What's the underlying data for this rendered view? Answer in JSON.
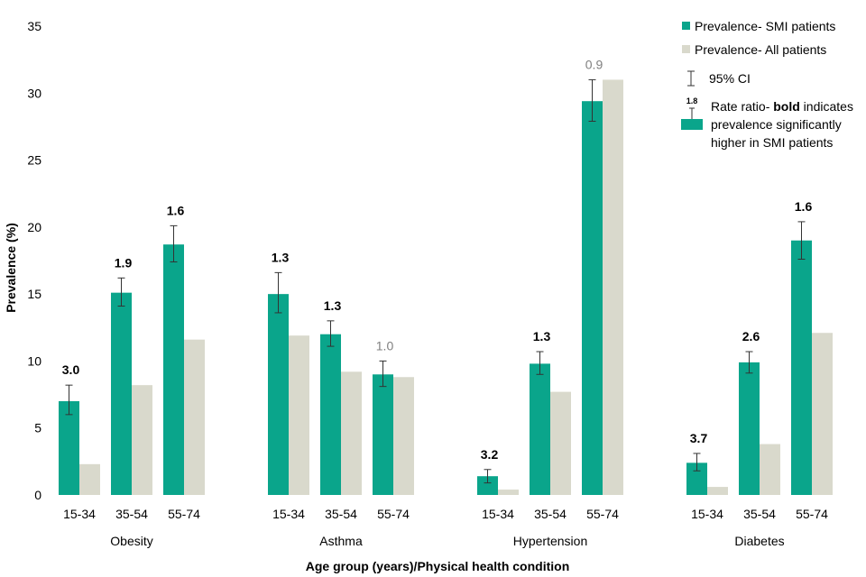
{
  "chart_data": {
    "type": "bar",
    "title": "",
    "ylabel": "Prevalence (%)",
    "xlabel": "Age group (years)/Physical health condition",
    "ylim": [
      0,
      35
    ],
    "yticks": [
      0,
      5,
      10,
      15,
      20,
      25,
      30,
      35
    ],
    "grid": false,
    "legend_position": "top-right",
    "colors": {
      "smi": "#0aa58b",
      "all": "#d9d9cc",
      "error": "#333333",
      "rr_plain": "#808080"
    },
    "groups": [
      {
        "name": "Obesity",
        "categories": [
          "15-34",
          "35-54",
          "55-74"
        ]
      },
      {
        "name": "Asthma",
        "categories": [
          "15-34",
          "35-54",
          "55-74"
        ]
      },
      {
        "name": "Hypertension",
        "categories": [
          "15-34",
          "35-54",
          "55-74"
        ]
      },
      {
        "name": "Diabetes",
        "categories": [
          "15-34",
          "35-54",
          "55-74"
        ]
      }
    ],
    "series": [
      {
        "name": "Prevalence- SMI patients",
        "values": [
          7.0,
          15.1,
          18.7,
          15.0,
          12.0,
          9.0,
          1.4,
          9.8,
          29.4,
          2.4,
          9.9,
          19.0
        ],
        "ci_lower": [
          6.0,
          14.1,
          17.4,
          13.6,
          11.1,
          8.1,
          0.9,
          9.0,
          27.9,
          1.8,
          9.1,
          17.6
        ],
        "ci_upper": [
          8.2,
          16.2,
          20.1,
          16.6,
          13.0,
          10.0,
          1.9,
          10.7,
          31.0,
          3.1,
          10.7,
          20.4
        ]
      },
      {
        "name": "Prevalence- All patients",
        "values": [
          2.3,
          8.2,
          11.6,
          11.9,
          9.2,
          8.8,
          0.4,
          7.7,
          31.0,
          0.6,
          3.8,
          12.1
        ]
      }
    ],
    "rate_ratios": [
      {
        "label": "3.0",
        "bold": true
      },
      {
        "label": "1.9",
        "bold": true
      },
      {
        "label": "1.6",
        "bold": true
      },
      {
        "label": "1.3",
        "bold": true
      },
      {
        "label": "1.3",
        "bold": true
      },
      {
        "label": "1.0",
        "bold": false
      },
      {
        "label": "3.2",
        "bold": true
      },
      {
        "label": "1.3",
        "bold": true
      },
      {
        "label": "0.9",
        "bold": false
      },
      {
        "label": "3.7",
        "bold": true
      },
      {
        "label": "2.6",
        "bold": true
      },
      {
        "label": "1.6",
        "bold": true
      }
    ]
  },
  "legend": {
    "smi_label": "Prevalence- SMI patients",
    "all_label": "Prevalence- All patients",
    "ci_label": "95% CI",
    "rr_sample_value": "1.8",
    "rr_prefix": "Rate ratio- ",
    "rr_bold_word": "bold",
    "rr_suffix": " indicates prevalence significantly higher in SMI patients"
  }
}
